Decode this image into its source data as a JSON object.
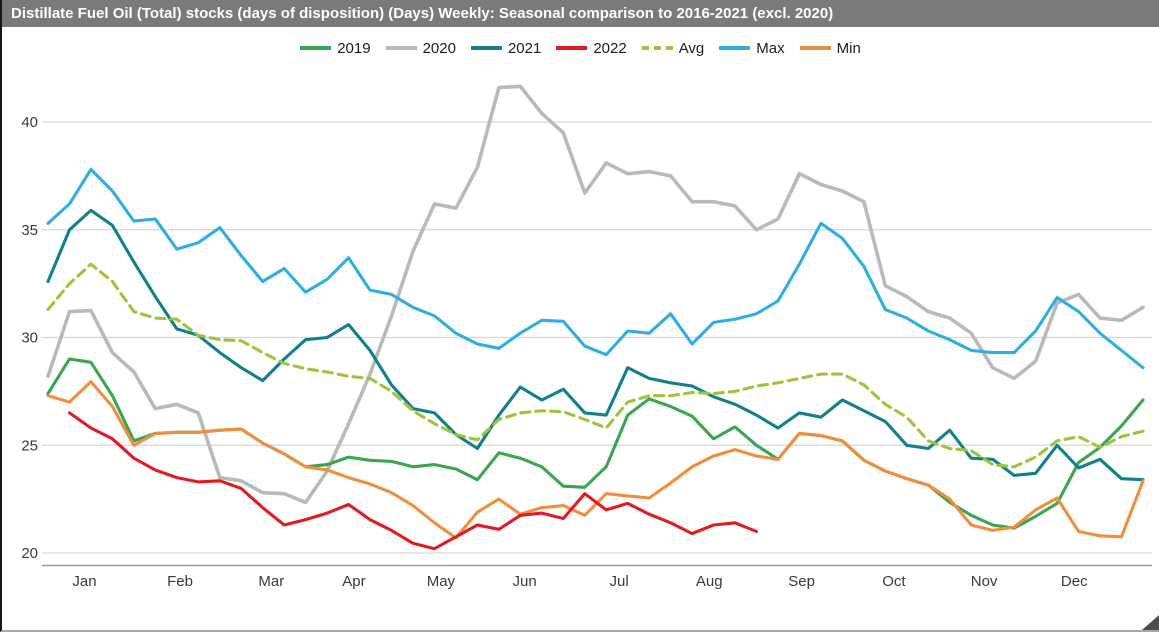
{
  "header": {
    "title": "Distillate Fuel Oil (Total) stocks (days of disposition) (Days) Weekly: Seasonal comparison to 2016-2021 (excl. 2020)"
  },
  "legend": [
    {
      "label": "2019",
      "color": "#3aa64f",
      "dashed": false
    },
    {
      "label": "2020",
      "color": "#b9b9b9",
      "dashed": false
    },
    {
      "label": "2021",
      "color": "#12808a",
      "dashed": false
    },
    {
      "label": "2022",
      "color": "#e11b22",
      "dashed": false
    },
    {
      "label": "Avg",
      "color": "#9dc43b",
      "dashed": true
    },
    {
      "label": "Max",
      "color": "#30aee3",
      "dashed": false
    },
    {
      "label": "Min",
      "color": "#ef8f3d",
      "dashed": false
    }
  ],
  "chart_data": {
    "type": "line",
    "title": "Distillate Fuel Oil (Total) stocks (days of disposition) (Days) Weekly: Seasonal comparison to 2016-2021 (excl. 2020)",
    "xlabel": "",
    "ylabel": "",
    "x_unit": "week_of_year",
    "weeks": 52,
    "grid": true,
    "y_axis": {
      "ticks": [
        20,
        25,
        30,
        35,
        40
      ],
      "ylim": [
        19.6,
        42.2
      ]
    },
    "x_axis": {
      "tick_labels": [
        "Jan",
        "Feb",
        "Mar",
        "Apr",
        "May",
        "Jun",
        "Jul",
        "Aug",
        "Sep",
        "Oct",
        "Nov",
        "Dec"
      ],
      "tick_week_positions": [
        2.7,
        7.15,
        11.4,
        15.25,
        19.3,
        23.2,
        27.6,
        31.8,
        36.1,
        40.4,
        44.6,
        48.8
      ]
    },
    "series": [
      {
        "name": "2019",
        "color": "#3aa64f",
        "dashed": false,
        "values": [
          27.4,
          29.0,
          28.85,
          27.3,
          25.2,
          25.55,
          25.6,
          25.6,
          25.7,
          25.75,
          25.1,
          24.6,
          24.0,
          24.1,
          24.45,
          24.3,
          24.25,
          24.0,
          24.1,
          23.9,
          23.4,
          24.65,
          24.4,
          24.0,
          23.1,
          23.05,
          24.0,
          26.4,
          27.15,
          26.8,
          26.35,
          25.3,
          25.85,
          25.0,
          24.35,
          25.55,
          25.45,
          25.2,
          24.3,
          23.8,
          23.45,
          23.15,
          22.35,
          21.75,
          21.3,
          21.15,
          21.7,
          22.3,
          24.2,
          24.9,
          25.9,
          27.1
        ]
      },
      {
        "name": "2020",
        "color": "#b9b9b9",
        "dashed": false,
        "values": [
          28.2,
          31.2,
          31.25,
          29.3,
          28.4,
          26.7,
          26.9,
          26.5,
          23.5,
          23.35,
          22.8,
          22.75,
          22.35,
          23.8,
          26.0,
          28.3,
          31.0,
          34.0,
          36.2,
          36.0,
          37.9,
          41.6,
          41.65,
          40.4,
          39.5,
          36.7,
          38.1,
          37.6,
          37.7,
          37.5,
          36.3,
          36.3,
          36.1,
          35.0,
          35.5,
          37.6,
          37.1,
          36.8,
          36.3,
          32.4,
          31.9,
          31.2,
          30.9,
          30.2,
          28.6,
          28.1,
          28.9,
          31.6,
          32.0,
          30.9,
          30.8,
          31.4
        ]
      },
      {
        "name": "2021",
        "color": "#12808a",
        "dashed": false,
        "values": [
          32.6,
          35.0,
          35.9,
          35.2,
          33.5,
          31.9,
          30.4,
          30.1,
          29.3,
          28.6,
          28.0,
          29.0,
          29.9,
          30.0,
          30.6,
          29.4,
          27.8,
          26.7,
          26.5,
          25.5,
          24.85,
          26.4,
          27.7,
          27.1,
          27.6,
          26.5,
          26.4,
          28.6,
          28.1,
          27.9,
          27.75,
          27.25,
          26.9,
          26.4,
          25.8,
          26.5,
          26.3,
          27.1,
          26.6,
          26.1,
          25.0,
          24.85,
          25.7,
          24.4,
          24.35,
          23.6,
          23.7,
          25.0,
          23.95,
          24.35,
          23.45,
          23.4
        ]
      },
      {
        "name": "2022",
        "color": "#e11b22",
        "dashed": false,
        "values": [
          null,
          26.5,
          25.8,
          25.3,
          24.4,
          23.85,
          23.5,
          23.3,
          23.35,
          23.0,
          22.1,
          21.3,
          21.55,
          21.85,
          22.25,
          21.55,
          21.05,
          20.45,
          20.2,
          20.75,
          21.3,
          21.1,
          21.75,
          21.85,
          21.6,
          22.75,
          22.0,
          22.3,
          21.8,
          21.4,
          20.9,
          21.3,
          21.4,
          21.0
        ]
      },
      {
        "name": "Avg",
        "color": "#9dc43b",
        "dashed": true,
        "values": [
          31.3,
          32.5,
          33.4,
          32.6,
          31.2,
          30.9,
          30.85,
          30.1,
          29.9,
          29.85,
          29.3,
          28.8,
          28.55,
          28.4,
          28.2,
          28.1,
          27.5,
          26.6,
          26.0,
          25.5,
          25.25,
          26.2,
          26.5,
          26.6,
          26.55,
          26.2,
          25.8,
          27.0,
          27.3,
          27.3,
          27.45,
          27.4,
          27.5,
          27.75,
          27.9,
          28.1,
          28.3,
          28.3,
          27.8,
          26.9,
          26.3,
          25.2,
          24.85,
          24.75,
          24.1,
          24.0,
          24.45,
          25.2,
          25.4,
          24.9,
          25.4,
          25.65
        ]
      },
      {
        "name": "Max",
        "color": "#30aee3",
        "dashed": false,
        "values": [
          35.3,
          36.2,
          37.8,
          36.8,
          35.4,
          35.5,
          34.1,
          34.4,
          35.1,
          33.8,
          32.6,
          33.2,
          32.1,
          32.7,
          33.7,
          32.2,
          32.0,
          31.4,
          31.0,
          30.2,
          29.7,
          29.5,
          30.2,
          30.8,
          30.75,
          29.6,
          29.2,
          30.3,
          30.2,
          31.1,
          29.7,
          30.7,
          30.85,
          31.1,
          31.7,
          33.4,
          35.3,
          34.6,
          33.3,
          31.3,
          30.9,
          30.3,
          29.9,
          29.4,
          29.3,
          29.3,
          30.3,
          31.85,
          31.2,
          30.2,
          29.4,
          28.6
        ]
      },
      {
        "name": "Min",
        "color": "#ef8f3d",
        "dashed": false,
        "values": [
          27.3,
          27.0,
          27.95,
          26.8,
          25.0,
          25.55,
          25.6,
          25.6,
          25.7,
          25.75,
          25.1,
          24.6,
          24.0,
          23.85,
          23.5,
          23.2,
          22.8,
          22.2,
          21.4,
          20.7,
          21.9,
          22.5,
          21.8,
          22.1,
          22.2,
          21.75,
          22.75,
          22.65,
          22.55,
          23.25,
          24.0,
          24.5,
          24.8,
          24.5,
          24.35,
          25.55,
          25.45,
          25.2,
          24.3,
          23.8,
          23.45,
          23.15,
          22.5,
          21.3,
          21.05,
          21.2,
          22.0,
          22.55,
          21.0,
          20.8,
          20.75,
          23.35
        ]
      }
    ],
    "legend_position": "top-center",
    "notes": "2022 series ends mid-August"
  }
}
